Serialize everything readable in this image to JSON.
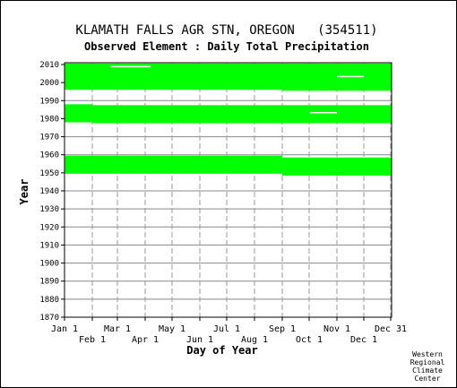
{
  "chart_data": {
    "type": "heatmap",
    "title": "KLAMATH FALLS AGR STN, OREGON   (354511)",
    "subtitle": "Observed Element : Daily Total Precipitation",
    "xlabel": "Day of Year",
    "ylabel": "Year",
    "xlim": [
      1,
      366
    ],
    "ylim": [
      1870,
      2011
    ],
    "grid": true,
    "y_ticks": [
      1870,
      1880,
      1890,
      1900,
      1910,
      1920,
      1930,
      1940,
      1950,
      1960,
      1970,
      1980,
      1990,
      2000,
      2010
    ],
    "x_ticks_top_row": [
      {
        "label": "Jan 1",
        "day": 1
      },
      {
        "label": "Mar 1",
        "day": 60
      },
      {
        "label": "May 1",
        "day": 121
      },
      {
        "label": "Jul 1",
        "day": 182
      },
      {
        "label": "Sep 1",
        "day": 244
      },
      {
        "label": "Nov 1",
        "day": 305
      },
      {
        "label": "Dec 31",
        "day": 365
      }
    ],
    "x_ticks_bottom_row": [
      {
        "label": "Feb 1",
        "day": 32
      },
      {
        "label": "Apr 1",
        "day": 91
      },
      {
        "label": "Jun 1",
        "day": 152
      },
      {
        "label": "Aug 1",
        "day": 213
      },
      {
        "label": "Oct 1",
        "day": 274
      },
      {
        "label": "Dec 1",
        "day": 335
      }
    ],
    "data_color": "#00ff00",
    "coverage": [
      {
        "start_day": 1,
        "end_day": 244,
        "start_year": 1996.0,
        "end_year": 2010.6
      },
      {
        "start_day": 244,
        "end_day": 366,
        "start_year": 1995.5,
        "end_year": 2010.6
      },
      {
        "start_day": 1,
        "end_day": 32,
        "start_year": 1978.0,
        "end_year": 1988.0
      },
      {
        "start_day": 32,
        "end_day": 366,
        "start_year": 1977.5,
        "end_year": 1987.5
      },
      {
        "start_day": 1,
        "end_day": 244,
        "start_year": 1949.5,
        "end_year": 1959.5
      },
      {
        "start_day": 244,
        "end_day": 366,
        "start_year": 1948.5,
        "end_year": 1958.5
      }
    ],
    "gaps": [
      {
        "start_day": 52,
        "end_day": 97,
        "start_year": 2008.8,
        "end_year": 2009.2
      },
      {
        "start_day": 305,
        "end_day": 335,
        "start_year": 2003.3,
        "end_year": 2003.7
      },
      {
        "start_day": 275,
        "end_day": 305,
        "start_year": 1983.3,
        "end_year": 1983.7
      }
    ]
  },
  "credit": {
    "line1": "Western",
    "line2": "Regional",
    "line3": "Climate",
    "line4": "Center"
  }
}
